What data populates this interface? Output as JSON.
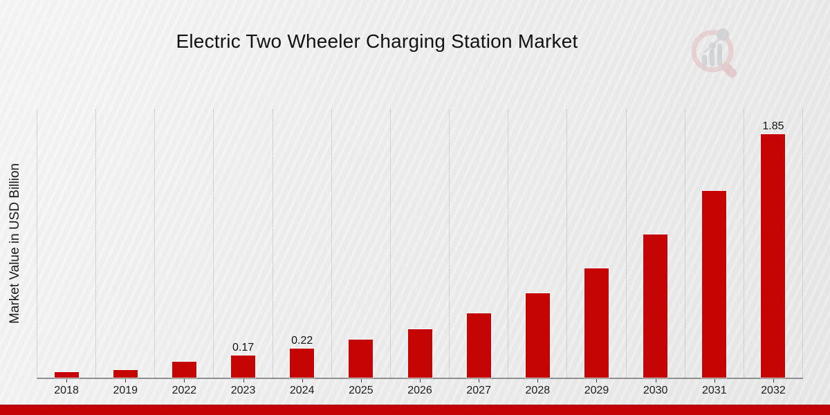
{
  "title": "Electric Two Wheeler Charging Station Market",
  "y_axis_label": "Market Value in USD Billion",
  "logo": {
    "name": "market-research-future-logo"
  },
  "colors": {
    "bar": "#c50404",
    "bottom_strip": "#c40404",
    "grid_line": "#b7b7b7",
    "axis_line": "#8f8f8f",
    "text": "#1a1a1a",
    "background_light": "#f6f6f6",
    "background_dark": "#e8e8e8"
  },
  "chart_data": {
    "type": "bar",
    "title": "Electric Two Wheeler Charging Station Market",
    "xlabel": "",
    "ylabel": "Market Value in USD Billion",
    "categories": [
      "2018",
      "2019",
      "2022",
      "2023",
      "2024",
      "2025",
      "2026",
      "2027",
      "2028",
      "2029",
      "2030",
      "2031",
      "2032"
    ],
    "values": [
      0.04,
      0.06,
      0.12,
      0.17,
      0.22,
      0.29,
      0.37,
      0.49,
      0.64,
      0.83,
      1.09,
      1.42,
      1.85
    ],
    "data_labels": {
      "2023": "0.17",
      "2024": "0.22",
      "2032": "1.85"
    },
    "ylim": [
      0,
      2.04
    ],
    "y_ticks_visible": false,
    "grid": "vertical-dotted",
    "legend": "none",
    "bar_color": "#c50404"
  }
}
